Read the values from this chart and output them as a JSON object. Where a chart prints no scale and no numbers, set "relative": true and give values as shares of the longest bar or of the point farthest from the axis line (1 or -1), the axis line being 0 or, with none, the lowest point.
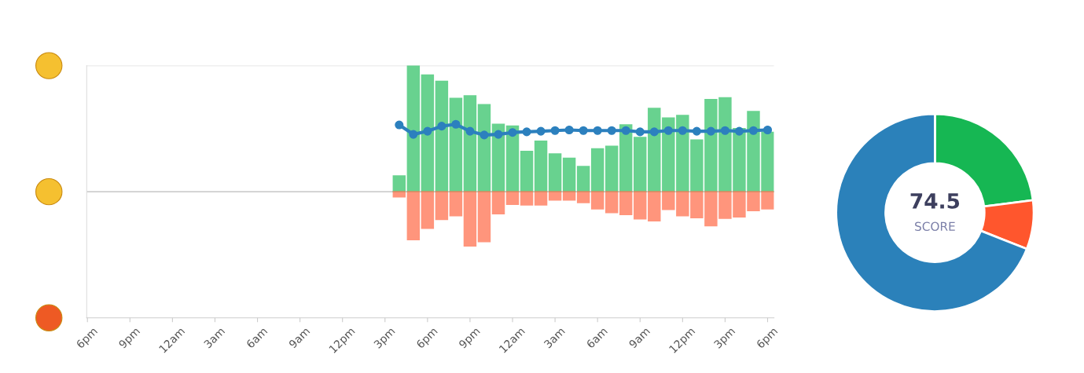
{
  "chart_data": [
    {
      "type": "bar",
      "relative": true,
      "categories": [
        "6pm",
        null,
        null,
        "9pm",
        null,
        null,
        "12am",
        null,
        null,
        "3am",
        null,
        null,
        "6am",
        null,
        null,
        "9am",
        null,
        null,
        "12pm",
        null,
        null,
        "3pm",
        null,
        null,
        "6pm",
        null,
        null,
        "9pm",
        null,
        null,
        "12am",
        null,
        null,
        "3am",
        null,
        null,
        "6am",
        null,
        null,
        "9am",
        null,
        null,
        "12pm",
        null,
        null,
        "3pm",
        null,
        null,
        "6pm"
      ],
      "series": [
        {
          "color": "#43c774",
          "values": [
            null,
            null,
            null,
            null,
            null,
            null,
            null,
            null,
            null,
            null,
            null,
            null,
            null,
            null,
            null,
            null,
            null,
            null,
            null,
            null,
            null,
            null,
            0.125,
            1.0,
            0.925,
            0.875,
            0.74,
            0.76,
            0.69,
            0.535,
            0.52,
            0.32,
            0.4,
            0.3,
            0.265,
            0.2,
            0.34,
            0.36,
            0.53,
            0.43,
            0.66,
            0.585,
            0.605,
            0.41,
            0.73,
            0.745,
            0.5,
            0.635,
            0.47
          ]
        },
        {
          "color": "#ff7b5c",
          "values": [
            null,
            null,
            null,
            null,
            null,
            null,
            null,
            null,
            null,
            null,
            null,
            null,
            null,
            null,
            null,
            null,
            null,
            null,
            null,
            null,
            null,
            null,
            -0.04,
            -0.38,
            -0.29,
            -0.22,
            -0.19,
            -0.43,
            -0.395,
            -0.175,
            -0.1,
            -0.105,
            -0.105,
            -0.065,
            -0.065,
            -0.085,
            -0.135,
            -0.165,
            -0.18,
            -0.215,
            -0.23,
            -0.14,
            -0.19,
            -0.205,
            -0.27,
            -0.21,
            -0.2,
            -0.15,
            -0.135
          ]
        },
        {
          "type": "line",
          "color": "#2c80be",
          "marker": "circle",
          "values": [
            null,
            null,
            null,
            null,
            null,
            null,
            null,
            null,
            null,
            null,
            null,
            null,
            null,
            null,
            null,
            null,
            null,
            null,
            null,
            null,
            null,
            null,
            0.53,
            0.455,
            0.48,
            0.52,
            0.535,
            0.48,
            0.45,
            0.455,
            0.47,
            0.475,
            0.48,
            0.485,
            0.49,
            0.485,
            0.485,
            0.485,
            0.485,
            0.475,
            0.475,
            0.485,
            0.485,
            0.48,
            0.48,
            0.485,
            0.48,
            0.485,
            0.49
          ]
        }
      ]
    },
    {
      "type": "donut",
      "categories": [
        null,
        null,
        null
      ],
      "values": [
        23,
        8,
        69
      ],
      "colors": [
        "#16b753",
        "#ff562d",
        "#2b81ba"
      ],
      "annotations": [
        "74.5",
        "SCORE"
      ]
    }
  ]
}
